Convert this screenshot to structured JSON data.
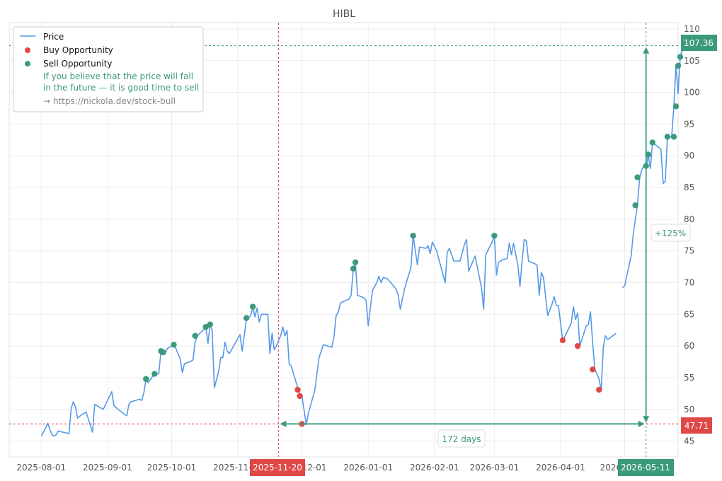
{
  "chart_data": {
    "type": "line",
    "title": "HIBL",
    "xlabel": "",
    "ylabel": "",
    "ylim": [
      42.5,
      111
    ],
    "y_ticks": [
      45,
      50,
      55,
      60,
      65,
      70,
      75,
      80,
      85,
      90,
      95,
      100,
      105,
      110
    ],
    "x_ticks": [
      {
        "date": "2025-08-01",
        "label": "2025-08-01"
      },
      {
        "date": "2025-09-01",
        "label": "2025-09-01"
      },
      {
        "date": "2025-10-01",
        "label": "2025-10-01"
      },
      {
        "date": "2025-11-01",
        "label": "2025-11-01"
      },
      {
        "date": "2025-12-01",
        "label": "2025-12-01"
      },
      {
        "date": "2026-01-01",
        "label": "2026-01-01"
      },
      {
        "date": "2026-02-01",
        "label": "2026-02-01"
      },
      {
        "date": "2026-03-01",
        "label": "2026-03-01"
      },
      {
        "date": "2026-04-01",
        "label": "2026-04-01"
      },
      {
        "date": "2026-05-01",
        "label": "2026-05-01"
      }
    ],
    "xlim": [
      "2025-07-17",
      "2026-05-26"
    ],
    "grid": true,
    "legend_position": "top-left",
    "series": [
      {
        "name": "Price",
        "color": "#5599e8",
        "segments": [
          [
            [
              "2025-08-01",
              45.8
            ],
            [
              "2025-08-03",
              47.0
            ],
            [
              "2025-08-04",
              47.8
            ],
            [
              "2025-08-06",
              46.0
            ],
            [
              "2025-08-07",
              45.8
            ],
            [
              "2025-08-08",
              46.0
            ],
            [
              "2025-08-09",
              46.6
            ],
            [
              "2025-08-11",
              46.4
            ],
            [
              "2025-08-14",
              46.2
            ],
            [
              "2025-08-15",
              50.2
            ],
            [
              "2025-08-16",
              51.2
            ],
            [
              "2025-08-17",
              50.4
            ],
            [
              "2025-08-18",
              48.6
            ],
            [
              "2025-08-20",
              49.2
            ],
            [
              "2025-08-22",
              49.6
            ],
            [
              "2025-08-25",
              46.4
            ],
            [
              "2025-08-26",
              50.8
            ],
            [
              "2025-08-28",
              50.4
            ],
            [
              "2025-08-30",
              50.0
            ],
            [
              "2025-09-03",
              52.8
            ],
            [
              "2025-09-04",
              50.6
            ],
            [
              "2025-09-06",
              50.0
            ],
            [
              "2025-09-09",
              49.2
            ],
            [
              "2025-09-10",
              49.0
            ],
            [
              "2025-09-11",
              50.8
            ],
            [
              "2025-09-12",
              51.2
            ],
            [
              "2025-09-16",
              51.6
            ],
            [
              "2025-09-17",
              51.4
            ],
            [
              "2025-09-18",
              52.6
            ],
            [
              "2025-09-19",
              54.8
            ],
            [
              "2025-09-20",
              54.2
            ],
            [
              "2025-09-23",
              55.6
            ],
            [
              "2025-09-25",
              55.6
            ],
            [
              "2025-09-26",
              59.2
            ],
            [
              "2025-09-27",
              59.0
            ],
            [
              "2025-09-28",
              58.8
            ],
            [
              "2025-09-29",
              59.6
            ],
            [
              "2025-10-02",
              60.2
            ],
            [
              "2025-10-03",
              59.6
            ],
            [
              "2025-10-05",
              58.0
            ],
            [
              "2025-10-06",
              55.8
            ],
            [
              "2025-10-07",
              57.2
            ],
            [
              "2025-10-10",
              57.6
            ],
            [
              "2025-10-11",
              57.8
            ],
            [
              "2025-10-12",
              60.6
            ],
            [
              "2025-10-13",
              61.6
            ],
            [
              "2025-10-16",
              62.6
            ],
            [
              "2025-10-17",
              63.0
            ],
            [
              "2025-10-18",
              60.4
            ],
            [
              "2025-10-19",
              63.4
            ],
            [
              "2025-10-20",
              62.4
            ],
            [
              "2025-10-21",
              53.4
            ],
            [
              "2025-10-23",
              56.0
            ],
            [
              "2025-10-24",
              58.2
            ],
            [
              "2025-10-25",
              58.2
            ],
            [
              "2025-10-26",
              60.6
            ],
            [
              "2025-10-27",
              59.2
            ],
            [
              "2025-10-28",
              58.8
            ],
            [
              "2025-11-02",
              61.8
            ],
            [
              "2025-11-03",
              59.2
            ],
            [
              "2025-11-05",
              64.2
            ],
            [
              "2025-11-07",
              64.8
            ],
            [
              "2025-11-08",
              66.2
            ],
            [
              "2025-11-09",
              64.6
            ],
            [
              "2025-11-10",
              66.0
            ],
            [
              "2025-11-11",
              63.8
            ],
            [
              "2025-11-12",
              65.0
            ],
            [
              "2025-11-15",
              65.0
            ],
            [
              "2025-11-16",
              58.8
            ],
            [
              "2025-11-17",
              62.0
            ],
            [
              "2025-11-18",
              59.4
            ],
            [
              "2025-11-19",
              60.0
            ],
            [
              "2025-11-21",
              61.6
            ],
            [
              "2025-11-22",
              63.0
            ],
            [
              "2025-11-23",
              61.6
            ],
            [
              "2025-11-24",
              62.4
            ],
            [
              "2025-11-25",
              57.2
            ],
            [
              "2025-11-26",
              56.8
            ],
            [
              "2025-11-29",
              53.4
            ],
            [
              "2025-11-30",
              52.4
            ],
            [
              "2025-12-01",
              52.0
            ],
            [
              "2025-12-03",
              47.6
            ],
            [
              "2025-12-04",
              49.4
            ],
            [
              "2025-12-07",
              53.0
            ],
            [
              "2025-12-09",
              58.2
            ],
            [
              "2025-12-11",
              60.2
            ],
            [
              "2025-12-13",
              60.0
            ],
            [
              "2025-12-15",
              59.8
            ],
            [
              "2025-12-16",
              61.6
            ],
            [
              "2025-12-17",
              64.8
            ],
            [
              "2025-12-18",
              65.4
            ],
            [
              "2025-12-19",
              66.8
            ],
            [
              "2025-12-23",
              67.4
            ],
            [
              "2025-12-24",
              68.0
            ],
            [
              "2025-12-25",
              72.2
            ],
            [
              "2025-12-26",
              73.2
            ],
            [
              "2025-12-27",
              68.0
            ],
            [
              "2025-12-30",
              67.6
            ],
            [
              "2025-12-31",
              67.2
            ],
            [
              "2026-01-01",
              63.2
            ],
            [
              "2026-01-03",
              68.8
            ],
            [
              "2026-01-05",
              70.0
            ],
            [
              "2026-01-06",
              71.0
            ],
            [
              "2026-01-07",
              70.0
            ],
            [
              "2026-01-08",
              70.8
            ],
            [
              "2026-01-10",
              70.6
            ],
            [
              "2026-01-14",
              69.0
            ],
            [
              "2026-01-15",
              68.0
            ],
            [
              "2026-01-16",
              65.8
            ],
            [
              "2026-01-17",
              67.4
            ],
            [
              "2026-01-18",
              69.0
            ],
            [
              "2026-01-19",
              70.2
            ],
            [
              "2026-01-21",
              72.4
            ],
            [
              "2026-01-22",
              77.4
            ],
            [
              "2026-01-24",
              72.8
            ],
            [
              "2026-01-25",
              75.6
            ],
            [
              "2026-01-28",
              75.4
            ],
            [
              "2026-01-29",
              75.8
            ],
            [
              "2026-01-30",
              74.6
            ],
            [
              "2026-01-31",
              76.4
            ],
            [
              "2026-02-02",
              75.0
            ],
            [
              "2026-02-06",
              70.0
            ],
            [
              "2026-02-07",
              74.8
            ],
            [
              "2026-02-08",
              75.4
            ],
            [
              "2026-02-10",
              73.4
            ],
            [
              "2026-02-13",
              73.4
            ],
            [
              "2026-02-15",
              76.0
            ],
            [
              "2026-02-16",
              76.8
            ],
            [
              "2026-02-17",
              71.8
            ],
            [
              "2026-02-20",
              74.2
            ],
            [
              "2026-02-23",
              69.2
            ],
            [
              "2026-02-24",
              65.8
            ],
            [
              "2026-02-25",
              74.4
            ],
            [
              "2026-02-28",
              76.4
            ],
            [
              "2026-03-01",
              77.4
            ],
            [
              "2026-03-02",
              71.2
            ],
            [
              "2026-03-03",
              73.2
            ],
            [
              "2026-03-05",
              73.6
            ],
            [
              "2026-03-07",
              73.8
            ],
            [
              "2026-03-08",
              76.2
            ],
            [
              "2026-03-09",
              74.4
            ],
            [
              "2026-03-10",
              76.2
            ],
            [
              "2026-03-12",
              72.8
            ],
            [
              "2026-03-13",
              69.4
            ],
            [
              "2026-03-14",
              73.4
            ],
            [
              "2026-03-15",
              76.8
            ],
            [
              "2026-03-16",
              76.6
            ],
            [
              "2026-03-17",
              73.4
            ],
            [
              "2026-03-21",
              72.8
            ],
            [
              "2026-03-22",
              68.0
            ],
            [
              "2026-03-23",
              71.6
            ],
            [
              "2026-03-24",
              70.8
            ],
            [
              "2026-03-26",
              64.8
            ],
            [
              "2026-03-28",
              66.6
            ],
            [
              "2026-03-29",
              67.8
            ],
            [
              "2026-03-30",
              66.4
            ],
            [
              "2026-03-31",
              66.4
            ],
            [
              "2026-04-02",
              60.8
            ],
            [
              "2026-04-06",
              63.6
            ],
            [
              "2026-04-07",
              66.2
            ],
            [
              "2026-04-08",
              64.2
            ],
            [
              "2026-04-09",
              65.2
            ],
            [
              "2026-04-10",
              60.0
            ],
            [
              "2026-04-13",
              63.2
            ],
            [
              "2026-04-14",
              63.4
            ],
            [
              "2026-04-15",
              65.4
            ],
            [
              "2026-04-16",
              60.6
            ],
            [
              "2026-04-17",
              56.4
            ],
            [
              "2026-04-19",
              54.8
            ],
            [
              "2026-04-20",
              53.0
            ],
            [
              "2026-04-21",
              59.8
            ],
            [
              "2026-04-22",
              61.6
            ],
            [
              "2026-04-23",
              61.0
            ],
            [
              "2026-04-27",
              62.0
            ]
          ],
          [
            [
              "2026-04-30",
              69.2
            ],
            [
              "2026-05-01",
              69.5
            ],
            [
              "2026-05-04",
              74.2
            ],
            [
              "2026-05-05",
              77.6
            ],
            [
              "2026-05-06",
              80.0
            ],
            [
              "2026-05-07",
              82.2
            ],
            [
              "2026-05-08",
              86.6
            ],
            [
              "2026-05-09",
              87.8
            ],
            [
              "2026-05-10",
              88.4
            ],
            [
              "2026-05-11",
              88.0
            ],
            [
              "2026-05-12",
              90.2
            ],
            [
              "2026-05-13",
              88.0
            ],
            [
              "2026-05-14",
              92.0
            ],
            [
              "2026-05-16",
              91.6
            ],
            [
              "2026-05-18",
              91.0
            ],
            [
              "2026-05-19",
              85.6
            ],
            [
              "2026-05-20",
              86.0
            ],
            [
              "2026-05-21",
              93.0
            ],
            [
              "2026-05-23",
              93.0
            ],
            [
              "2026-05-24",
              97.8
            ],
            [
              "2026-05-25",
              104.2
            ],
            [
              "2026-05-26",
              99.8
            ],
            [
              "2026-05-27",
              105.6
            ],
            [
              "2026-05-28",
              106.8
            ],
            [
              "2026-05-29",
              107.36
            ]
          ]
        ]
      },
      {
        "name": "Buy Opportunity",
        "color": "#e04848",
        "points": [
          [
            "2025-11-29",
            53.1
          ],
          [
            "2025-11-30",
            52.1
          ],
          [
            "2025-12-01",
            47.71
          ],
          [
            "2026-04-02",
            60.9
          ],
          [
            "2026-04-09",
            60.0
          ],
          [
            "2026-04-16",
            56.3
          ],
          [
            "2026-04-19",
            53.1
          ]
        ]
      },
      {
        "name": "Sell Opportunity",
        "color": "#3b9a7c",
        "points": [
          [
            "2025-09-19",
            54.8
          ],
          [
            "2025-09-23",
            55.6
          ],
          [
            "2025-09-26",
            59.2
          ],
          [
            "2025-09-27",
            59.0
          ],
          [
            "2025-10-02",
            60.2
          ],
          [
            "2025-10-12",
            61.6
          ],
          [
            "2025-10-17",
            63.0
          ],
          [
            "2025-10-19",
            63.4
          ],
          [
            "2025-11-05",
            64.4
          ],
          [
            "2025-11-08",
            66.2
          ],
          [
            "2025-12-25",
            72.2
          ],
          [
            "2025-12-26",
            73.2
          ],
          [
            "2026-01-22",
            77.4
          ],
          [
            "2026-03-01",
            77.4
          ],
          [
            "2026-05-06",
            82.2
          ],
          [
            "2026-05-07",
            86.6
          ],
          [
            "2026-05-11",
            88.4
          ],
          [
            "2026-05-12",
            90.2
          ],
          [
            "2026-05-14",
            92.1
          ],
          [
            "2026-05-21",
            93.0
          ],
          [
            "2026-05-24",
            93.0
          ],
          [
            "2026-05-25",
            97.8
          ],
          [
            "2026-05-26",
            104.2
          ],
          [
            "2026-05-27",
            105.6
          ],
          [
            "2026-05-29",
            107.36
          ]
        ]
      }
    ],
    "legend": {
      "note_lines": [
        "If you believe that the price will fall",
        "in the future — it is good time to sell"
      ],
      "link": "→ https://nickola.dev/stock-bull"
    },
    "annotations": {
      "buy_date": "2025-11-20",
      "buy_price": 47.71,
      "buy_price_label": "47.71",
      "buy_date_label": "2025-11-20",
      "sell_date": "2026-05-11",
      "sell_price": 107.36,
      "sell_price_label": "107.36",
      "sell_date_label": "2026-05-11",
      "duration_label": "172 days",
      "change_label": "+125%",
      "buy_color": "#e04848",
      "sell_color": "#3b9a7c"
    }
  }
}
